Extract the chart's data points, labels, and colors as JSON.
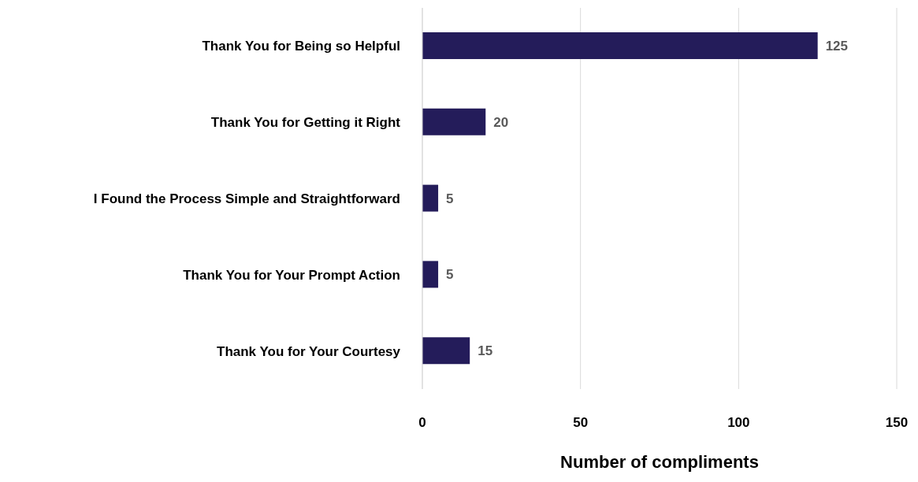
{
  "chart_data": {
    "type": "bar",
    "orientation": "horizontal",
    "xlabel": "Number of compliments",
    "categories": [
      "Thank You for Being so Helpful",
      "Thank You for Getting it Right",
      "I Found the Process Simple and Straightforward",
      "Thank You for Your Prompt Action",
      "Thank You for Your Courtesy"
    ],
    "values": [
      125,
      20,
      5,
      5,
      15
    ],
    "color": "#241c5a",
    "xlim": [
      0,
      150
    ],
    "xticks": [
      0,
      50,
      100,
      150
    ],
    "grid": "x",
    "data_labels": true
  }
}
